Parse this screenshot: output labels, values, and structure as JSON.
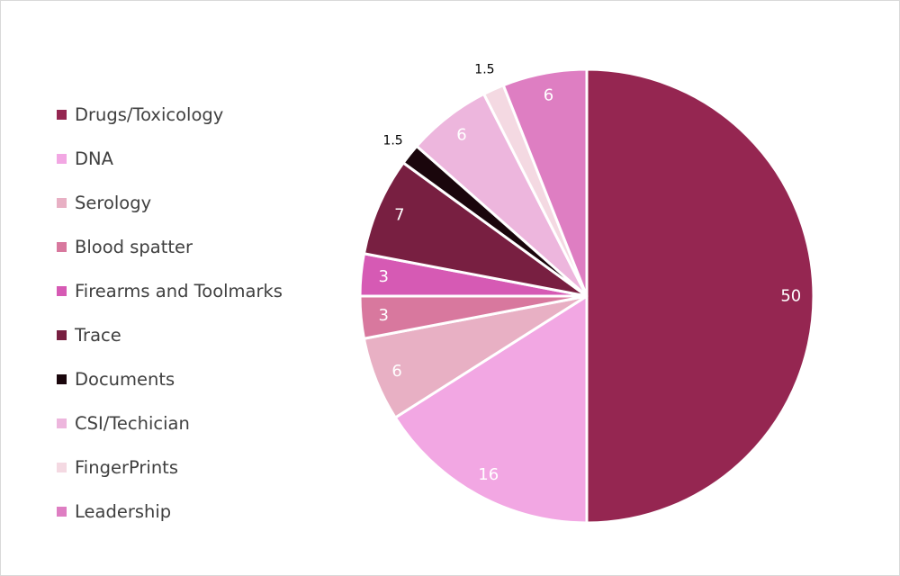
{
  "chart_data": {
    "type": "pie",
    "legend_position": "left",
    "start_angle_deg": 0,
    "direction": "clockwise",
    "slices": [
      {
        "label": "Drugs/Toxicology",
        "value": 50,
        "color": "#952651",
        "label_color": "#ffffff",
        "label_outside": false
      },
      {
        "label": "DNA",
        "value": 16,
        "color": "#F2A7E3",
        "label_color": "#ffffff",
        "label_outside": false
      },
      {
        "label": "Serology",
        "value": 6,
        "color": "#E8B0C4",
        "label_color": "#ffffff",
        "label_outside": false
      },
      {
        "label": "Blood spatter",
        "value": 3,
        "color": "#D8789E",
        "label_color": "#ffffff",
        "label_outside": false
      },
      {
        "label": "Firearms and Toolmarks",
        "value": 3,
        "color": "#D65AB4",
        "label_color": "#ffffff",
        "label_outside": false
      },
      {
        "label": "Trace",
        "value": 7,
        "color": "#781F41",
        "label_color": "#ffffff",
        "label_outside": false
      },
      {
        "label": "Documents",
        "value": 1.5,
        "color": "#1A060C",
        "label_color": "#000000",
        "label_outside": true
      },
      {
        "label": "CSI/Techician",
        "value": 6,
        "color": "#EDB6DD",
        "label_color": "#ffffff",
        "label_outside": false
      },
      {
        "label": "FingerPrints",
        "value": 1.5,
        "color": "#F4D9E2",
        "label_color": "#000000",
        "label_outside": true
      },
      {
        "label": "Leadership",
        "value": 6,
        "color": "#DE7EC2",
        "label_color": "#ffffff",
        "label_outside": false
      }
    ]
  }
}
